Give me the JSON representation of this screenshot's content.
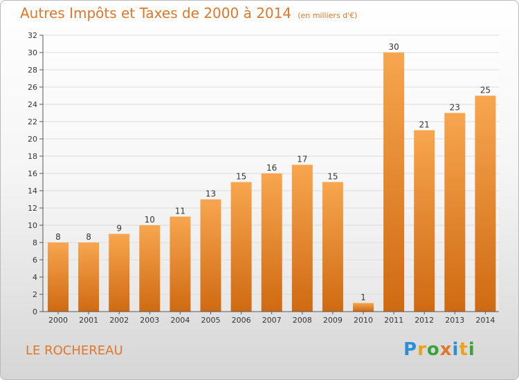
{
  "header": {
    "title": "Autres Impôts et Taxes de 2000 à 2014",
    "subtitle": "(en milliers d'€)"
  },
  "footer": {
    "place": "LE ROCHEREAU",
    "brand": {
      "letters": [
        "P",
        "r",
        "o",
        "x",
        "i",
        "t",
        "i"
      ],
      "colors": [
        "#2a8fd8",
        "#e8a21b",
        "#3aa33a",
        "#e0772a",
        "#2a8fd8",
        "#e8a21b",
        "#3aa33a"
      ]
    }
  },
  "colors": {
    "bar_top": "#f7a64f",
    "bar_bottom": "#cf6a12",
    "grid": "#dcdcdc",
    "axis": "#555555",
    "label": "#333333"
  },
  "chart_data": {
    "type": "bar",
    "categories": [
      "2000",
      "2001",
      "2002",
      "2003",
      "2004",
      "2005",
      "2006",
      "2007",
      "2008",
      "2009",
      "2010",
      "2011",
      "2012",
      "2013",
      "2014"
    ],
    "values": [
      8,
      8,
      9,
      10,
      11,
      13,
      15,
      16,
      17,
      15,
      1,
      30,
      21,
      23,
      25
    ],
    "data_labels": [
      "8",
      "8",
      "9",
      "10",
      "11",
      "13",
      "15",
      "16",
      "17",
      "15",
      "1",
      "30",
      "21",
      "23",
      "25"
    ],
    "title": "Autres Impôts et Taxes de 2000 à 2014",
    "xlabel": "",
    "ylabel": "",
    "ylim": [
      0,
      32
    ],
    "yticks": [
      "0",
      "2",
      "4",
      "6",
      "8",
      "10",
      "12",
      "14",
      "16",
      "18",
      "20",
      "22",
      "24",
      "26",
      "28",
      "30",
      "32"
    ],
    "grid": true,
    "legend": "none"
  }
}
